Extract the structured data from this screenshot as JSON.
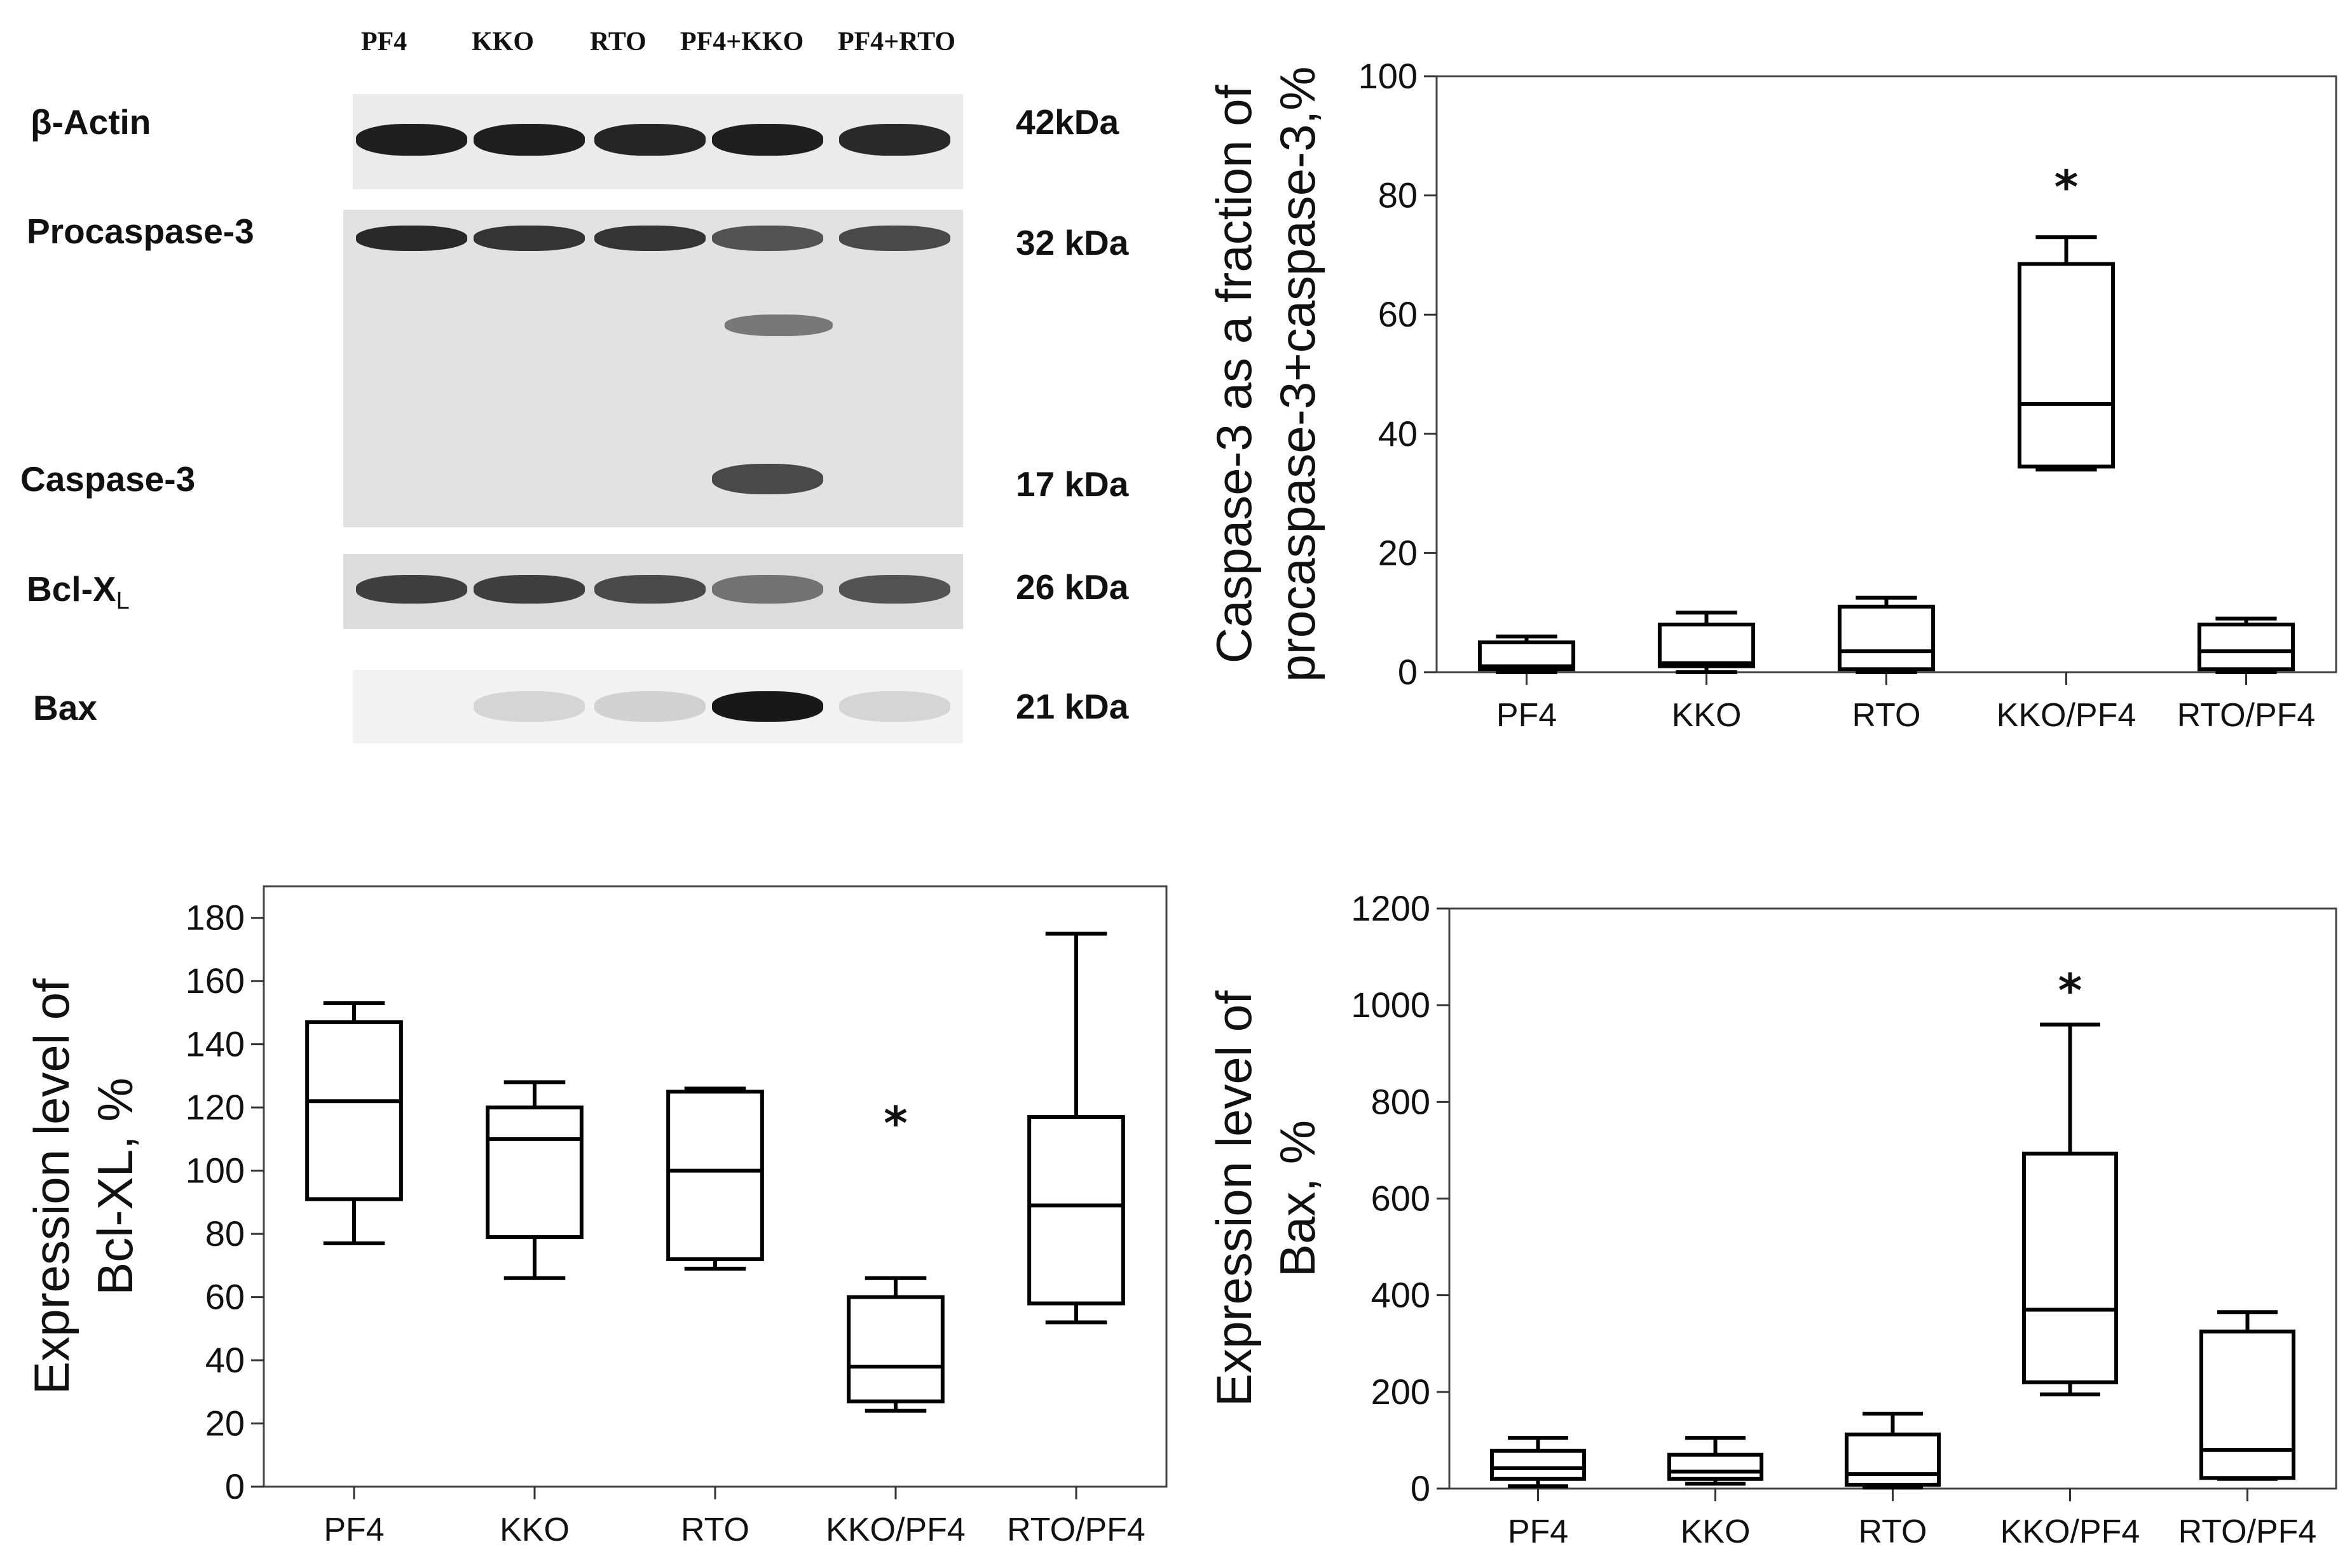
{
  "blot": {
    "lanes": [
      "PF4",
      "KKO",
      "RTO",
      "PF4+KKO",
      "PF4+RTO"
    ],
    "rows": [
      {
        "label": "β-Actin",
        "kda": "42kDa",
        "intensity": [
          0.95,
          0.95,
          0.92,
          0.95,
          0.9
        ]
      },
      {
        "label": "Procaspase-3",
        "kda": "32 kDa",
        "intensity": [
          0.9,
          0.85,
          0.85,
          0.7,
          0.75
        ]
      },
      {
        "label": "Caspase-3",
        "kda": "17 kDa",
        "intensity": [
          0,
          0,
          0,
          0.75,
          0
        ]
      },
      {
        "label": "Bcl-X",
        "label_sub": "L",
        "kda": "26 kDa",
        "intensity": [
          0.8,
          0.8,
          0.75,
          0.55,
          0.7
        ]
      },
      {
        "label": "Bax",
        "kda": "21 kDa",
        "intensity": [
          0,
          0.08,
          0.1,
          0.98,
          0.08
        ]
      }
    ]
  },
  "chart_data": [
    {
      "type": "box",
      "panel": "caspase",
      "ylabel_lines": [
        "Caspase-3 as a fraction of",
        "procaspase-3+caspase-3,%"
      ],
      "xlabel": "",
      "categories": [
        "PF4",
        "KKO",
        "RTO",
        "KKO/PF4",
        "RTO/PF4"
      ],
      "ylim": [
        0,
        100
      ],
      "yticks": [
        0,
        20,
        40,
        60,
        80,
        100
      ],
      "boxes": [
        {
          "min": 0,
          "q1": 0.5,
          "median": 1,
          "q3": 5,
          "max": 6
        },
        {
          "min": 0,
          "q1": 1,
          "median": 1.5,
          "q3": 8,
          "max": 10
        },
        {
          "min": 0,
          "q1": 0.5,
          "median": 3.5,
          "q3": 11,
          "max": 12.5
        },
        {
          "min": 34,
          "q1": 34.5,
          "median": 45,
          "q3": 68.5,
          "max": 73
        },
        {
          "min": 0,
          "q1": 0.5,
          "median": 3.5,
          "q3": 8,
          "max": 9
        }
      ],
      "annotations": [
        {
          "category": "KKO/PF4",
          "text": "*",
          "y": 83
        }
      ]
    },
    {
      "type": "box",
      "panel": "bcl",
      "ylabel_lines": [
        "Expression level of",
        "Bcl-XL, %"
      ],
      "xlabel": "",
      "categories": [
        "PF4",
        "KKO",
        "RTO",
        "KKO/PF4",
        "RTO/PF4"
      ],
      "ylim": [
        0,
        190
      ],
      "yticks": [
        0,
        20,
        40,
        60,
        80,
        100,
        120,
        140,
        160,
        180
      ],
      "boxes": [
        {
          "min": 77,
          "q1": 91,
          "median": 122,
          "q3": 147,
          "max": 153
        },
        {
          "min": 66,
          "q1": 79,
          "median": 110,
          "q3": 120,
          "max": 128
        },
        {
          "min": 69,
          "q1": 72,
          "median": 100,
          "q3": 125,
          "max": 126
        },
        {
          "min": 24,
          "q1": 27,
          "median": 38,
          "q3": 60,
          "max": 66
        },
        {
          "min": 52,
          "q1": 58,
          "median": 89,
          "q3": 117,
          "max": 175
        }
      ],
      "annotations": [
        {
          "category": "KKO/PF4",
          "text": "*",
          "y": 118
        }
      ]
    },
    {
      "type": "box",
      "panel": "bax",
      "ylabel_lines": [
        "Expression level of",
        "Bax, %"
      ],
      "xlabel": "",
      "categories": [
        "PF4",
        "KKO",
        "RTO",
        "KKO/PF4",
        "RTO/PF4"
      ],
      "ylim": [
        0,
        1200
      ],
      "yticks": [
        0,
        200,
        400,
        600,
        800,
        1000,
        1200
      ],
      "boxes": [
        {
          "min": 5,
          "q1": 20,
          "median": 42,
          "q3": 78,
          "max": 105
        },
        {
          "min": 10,
          "q1": 20,
          "median": 35,
          "q3": 70,
          "max": 105
        },
        {
          "min": 2,
          "q1": 8,
          "median": 30,
          "q3": 112,
          "max": 155
        },
        {
          "min": 195,
          "q1": 220,
          "median": 370,
          "q3": 693,
          "max": 960
        },
        {
          "min": 20,
          "q1": 22,
          "median": 80,
          "q3": 325,
          "max": 365
        }
      ],
      "annotations": [
        {
          "category": "KKO/PF4",
          "text": "*",
          "y": 1050
        }
      ]
    }
  ]
}
